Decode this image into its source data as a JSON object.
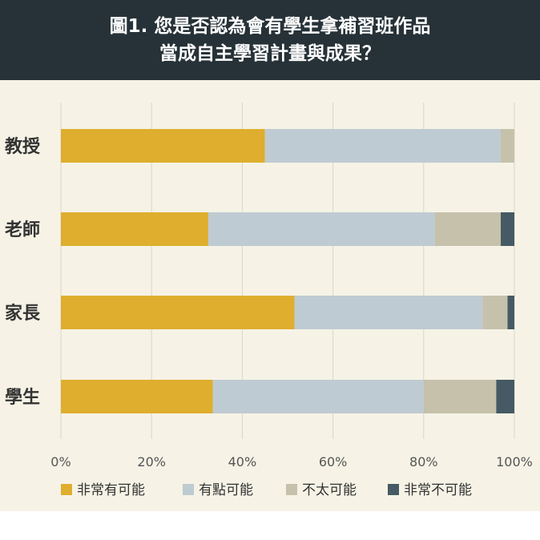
{
  "title": {
    "line1": "圖1. 您是否認為會有學生拿補習班作品",
    "line2": "當成自主學習計畫與成果？"
  },
  "chart_data": {
    "type": "bar",
    "orientation": "horizontal",
    "stacked": true,
    "categories": [
      "教授",
      "老師",
      "家長",
      "學生"
    ],
    "series": [
      {
        "name": "非常有可能",
        "color": "#dfae2f",
        "values": [
          45,
          32.5,
          51.5,
          33.5
        ]
      },
      {
        "name": "有點可能",
        "color": "#bfcbd2",
        "values": [
          52,
          50,
          41.5,
          46.5
        ]
      },
      {
        "name": "不太可能",
        "color": "#c6c1ab",
        "values": [
          3,
          14.5,
          5.5,
          16
        ]
      },
      {
        "name": "非常不可能",
        "color": "#455a64",
        "values": [
          0,
          3,
          1.5,
          4
        ]
      }
    ],
    "xlim": [
      0,
      100
    ],
    "ticks": [
      "0%",
      "20%",
      "40%",
      "60%",
      "80%",
      "100%"
    ],
    "grid": true,
    "legend_position": "bottom"
  }
}
